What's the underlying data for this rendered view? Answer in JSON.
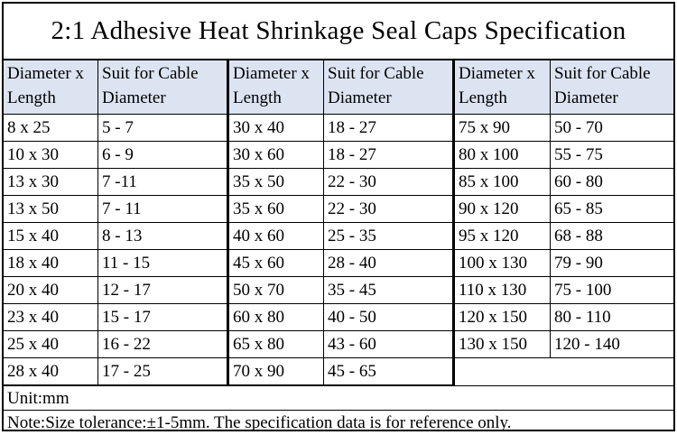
{
  "title": "2:1 Adhesive Heat Shrinkage Seal Caps Specification",
  "headers": {
    "col1": [
      "Diameter x",
      "Length"
    ],
    "col2": [
      "Suit for Cable",
      "Diameter"
    ]
  },
  "groups": [
    {
      "rows": [
        [
          "8 x 25",
          "5 - 7"
        ],
        [
          "10 x 30",
          "6 - 9"
        ],
        [
          "13 x 30",
          "7 -11"
        ],
        [
          "13 x 50",
          "7 - 11"
        ],
        [
          "15 x 40",
          "8 - 13"
        ],
        [
          "18 x 40",
          "11 - 15"
        ],
        [
          "20 x 40",
          "12 - 17"
        ],
        [
          "23 x 40",
          "15 - 17"
        ],
        [
          "25 x 40",
          "16 - 22"
        ],
        [
          "28 x 40",
          "17 - 25"
        ]
      ]
    },
    {
      "rows": [
        [
          "30 x 40",
          "18 - 27"
        ],
        [
          "30 x 60",
          "18 - 27"
        ],
        [
          "35 x 50",
          "22 - 30"
        ],
        [
          "35 x 60",
          "22 - 30"
        ],
        [
          "40 x 60",
          "25 - 35"
        ],
        [
          "45 x 60",
          "28 - 40"
        ],
        [
          "50 x 70",
          "35 - 45"
        ],
        [
          "60 x 80",
          "40 - 50"
        ],
        [
          "65 x 80",
          "43 - 60"
        ],
        [
          "70 x 90",
          "45 - 65"
        ]
      ]
    },
    {
      "rows": [
        [
          "75 x 90",
          "50 - 70"
        ],
        [
          "80 x 100",
          "55 - 75"
        ],
        [
          "85 x 100",
          "60 - 80"
        ],
        [
          "90 x 120",
          "65 - 85"
        ],
        [
          "95 x 120",
          "68 - 88"
        ],
        [
          "100 x 130",
          "79 - 90"
        ],
        [
          "110 x 130",
          "75 - 100"
        ],
        [
          "120 x 150",
          "80 - 110"
        ],
        [
          "130 x 150",
          "120 - 140"
        ]
      ]
    }
  ],
  "unit": "Unit:mm",
  "note": "Note:Size tolerance:±1-5mm. The specification data is for reference only."
}
